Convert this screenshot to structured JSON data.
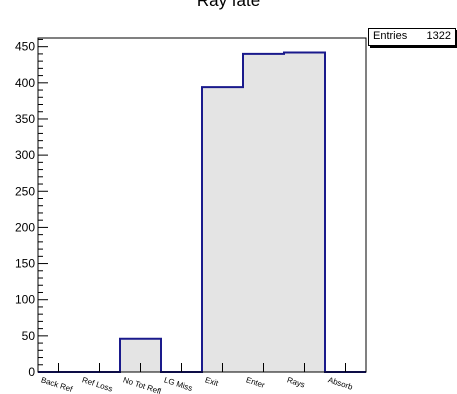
{
  "chart_data": {
    "type": "bar",
    "title": "Ray fate",
    "categories": [
      "Back Ref",
      "Ref Loss",
      "No Tot Refl",
      "LG Miss",
      "Exit",
      "Enter",
      "Rays",
      "Absorb"
    ],
    "values": [
      0,
      0,
      46,
      0,
      394,
      440,
      442,
      0
    ],
    "ylim": [
      0,
      462
    ],
    "yticks": [
      0,
      50,
      100,
      150,
      200,
      250,
      300,
      350,
      400,
      450
    ],
    "stats": {
      "label": "Entries",
      "value": "1322"
    },
    "colors": {
      "fill": "#e4e4e4",
      "line": "#1a1a8c",
      "axis": "#000000"
    },
    "grid": false
  }
}
